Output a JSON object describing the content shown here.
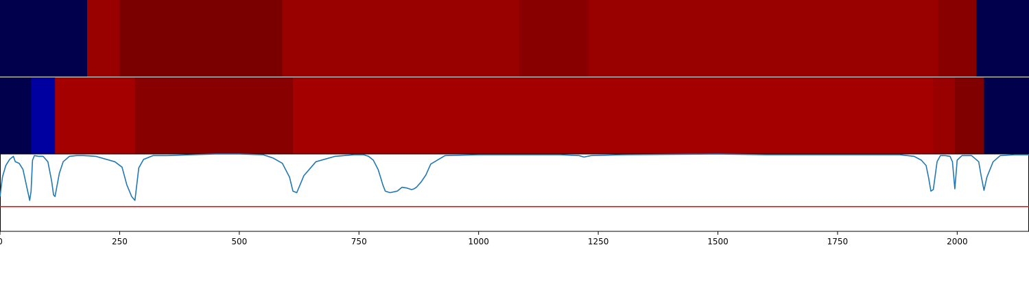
{
  "chart_data": [
    {
      "type": "heatmap",
      "panel": "top-band",
      "xlim": [
        0,
        2150
      ],
      "segments": [
        {
          "x0": 0,
          "x1": 182,
          "color": "#00004c"
        },
        {
          "x0": 182,
          "x1": 250,
          "color": "#990000"
        },
        {
          "x0": 250,
          "x1": 590,
          "color": "#7a0000"
        },
        {
          "x0": 590,
          "x1": 1085,
          "color": "#990000"
        },
        {
          "x0": 1085,
          "x1": 1230,
          "color": "#880000"
        },
        {
          "x0": 1230,
          "x1": 1960,
          "color": "#990000"
        },
        {
          "x0": 1960,
          "x1": 2040,
          "color": "#880000"
        },
        {
          "x0": 2040,
          "x1": 2150,
          "color": "#00004c"
        }
      ]
    },
    {
      "type": "heatmap",
      "panel": "middle-band",
      "xlim": [
        0,
        2150
      ],
      "segments": [
        {
          "x0": 0,
          "x1": 65,
          "color": "#00004c"
        },
        {
          "x0": 65,
          "x1": 115,
          "color": "#0000a0"
        },
        {
          "x0": 115,
          "x1": 282,
          "color": "#a40000"
        },
        {
          "x0": 282,
          "x1": 612,
          "color": "#880000"
        },
        {
          "x0": 612,
          "x1": 1950,
          "color": "#a40000"
        },
        {
          "x0": 1950,
          "x1": 1995,
          "color": "#990000"
        },
        {
          "x0": 1995,
          "x1": 2056,
          "color": "#800000"
        },
        {
          "x0": 2056,
          "x1": 2150,
          "color": "#00004c"
        }
      ]
    },
    {
      "type": "line",
      "panel": "bottom-plot",
      "xlim": [
        0,
        2150
      ],
      "ylim": [
        0,
        1.0
      ],
      "x_ticks": [
        "0",
        "250",
        "500",
        "750",
        "1000",
        "1250",
        "1500",
        "1750",
        "2000"
      ],
      "x_tick_values": [
        0,
        250,
        500,
        750,
        1000,
        1250,
        1500,
        1750,
        2000
      ],
      "threshold": {
        "y": 0.32,
        "color": "#e31a1c"
      },
      "series": [
        {
          "color": "#1f77b4",
          "x": [
            0,
            5,
            12,
            20,
            28,
            32,
            40,
            48,
            55,
            62,
            65,
            68,
            72,
            80,
            90,
            100,
            108,
            112,
            115,
            118,
            124,
            132,
            145,
            160,
            175,
            200,
            240,
            255,
            265,
            275,
            282,
            290,
            300,
            320,
            350,
            400,
            450,
            500,
            550,
            570,
            590,
            605,
            612,
            620,
            635,
            660,
            700,
            740,
            760,
            770,
            780,
            790,
            795,
            800,
            805,
            815,
            830,
            840,
            850,
            860,
            865,
            870,
            880,
            890,
            895,
            900,
            930,
            1000,
            1100,
            1170,
            1210,
            1220,
            1235,
            1300,
            1500,
            1600,
            1700,
            1800,
            1880,
            1910,
            1925,
            1935,
            1940,
            1945,
            1950,
            1958,
            1965,
            1975,
            1985,
            1990,
            1995,
            2000,
            2010,
            2030,
            2045,
            2050,
            2056,
            2062,
            2075,
            2090,
            2120,
            2150
          ],
          "y": [
            0.45,
            0.7,
            0.85,
            0.93,
            0.97,
            0.9,
            0.88,
            0.8,
            0.6,
            0.4,
            0.52,
            0.92,
            0.98,
            0.97,
            0.97,
            0.9,
            0.65,
            0.47,
            0.45,
            0.55,
            0.75,
            0.9,
            0.97,
            0.98,
            0.98,
            0.97,
            0.9,
            0.83,
            0.6,
            0.45,
            0.4,
            0.82,
            0.93,
            0.98,
            0.98,
            0.99,
            1.0,
            1.0,
            0.99,
            0.95,
            0.88,
            0.7,
            0.52,
            0.5,
            0.72,
            0.9,
            0.97,
            0.99,
            0.99,
            0.97,
            0.92,
            0.8,
            0.7,
            0.6,
            0.52,
            0.5,
            0.52,
            0.57,
            0.56,
            0.54,
            0.55,
            0.57,
            0.64,
            0.73,
            0.8,
            0.87,
            0.98,
            0.99,
            0.99,
            0.99,
            0.98,
            0.96,
            0.98,
            0.99,
            1.0,
            0.99,
            0.99,
            0.99,
            0.99,
            0.97,
            0.92,
            0.85,
            0.7,
            0.52,
            0.54,
            0.9,
            0.98,
            0.98,
            0.97,
            0.9,
            0.55,
            0.92,
            0.98,
            0.98,
            0.9,
            0.72,
            0.53,
            0.7,
            0.9,
            0.98,
            0.99,
            0.99
          ]
        }
      ]
    }
  ]
}
